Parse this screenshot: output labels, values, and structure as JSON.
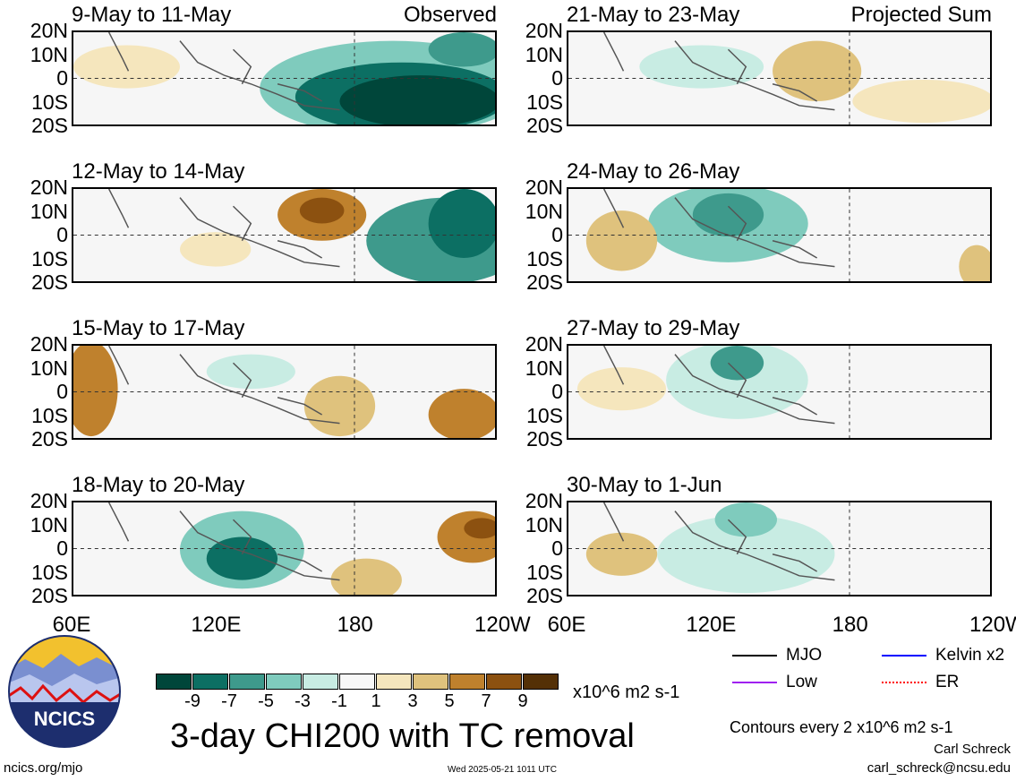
{
  "panels": [
    {
      "title": "9-May to 11-May",
      "corner": "Observed"
    },
    {
      "title": "12-May to 14-May",
      "corner": ""
    },
    {
      "title": "15-May to 17-May",
      "corner": ""
    },
    {
      "title": "18-May to 20-May",
      "corner": ""
    },
    {
      "title": "21-May to 23-May",
      "corner": "Projected Sum"
    },
    {
      "title": "24-May to 26-May",
      "corner": ""
    },
    {
      "title": "27-May to 29-May",
      "corner": ""
    },
    {
      "title": "30-May to 1-Jun",
      "corner": ""
    }
  ],
  "lat_labels": [
    "20N",
    "10N",
    "0",
    "10S",
    "20S"
  ],
  "lon_labels": [
    "60E",
    "120E",
    "180",
    "120W"
  ],
  "colorbar": {
    "colors": [
      "#00463a",
      "#0c6f63",
      "#3e9a8c",
      "#7fcbbd",
      "#c8ece3",
      "#f7f7f7",
      "#f5e6bd",
      "#dfc27d",
      "#bf812d",
      "#8c5110",
      "#543006"
    ],
    "ticks": [
      "-9",
      "-7",
      "-5",
      "-3",
      "-1",
      "1",
      "3",
      "5",
      "7",
      "9"
    ],
    "units": "x10^6 m2 s-1"
  },
  "main_title": "3-day CHI200 with TC removal",
  "legend": [
    {
      "label": "MJO",
      "color": "#000000"
    },
    {
      "label": "Kelvin x2",
      "color": "#0000ff"
    },
    {
      "label": "Low",
      "color": "#a020f0"
    },
    {
      "label": "ER",
      "color": "#ff0000"
    }
  ],
  "contour_note": "Contours every 2 x10^6 m2 s-1",
  "author": "Carl Schreck",
  "email": "carl_schreck@ncsu.edu",
  "website": "ncics.org/mjo",
  "timestamp": "Wed 2025-05-21 1011 UTC",
  "logo_text": "NCICS"
}
